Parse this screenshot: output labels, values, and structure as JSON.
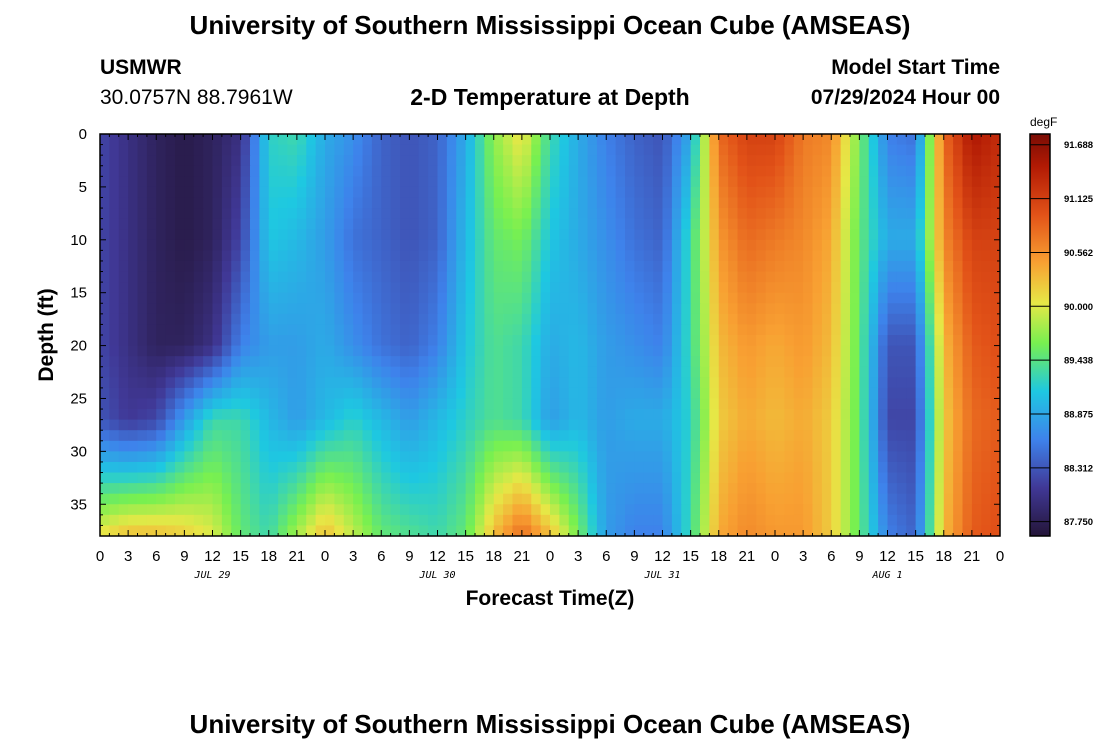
{
  "header": {
    "title": "University of Southern Mississippi Ocean Cube (AMSEAS)",
    "station": "USMWR",
    "coords": "30.0757N  88.7961W",
    "plot_title": "2-D Temperature at Depth",
    "model_start_label": "Model Start Time",
    "model_start_value": "07/29/2024 Hour 00"
  },
  "footer": {
    "title": "University of Southern Mississippi Ocean Cube (AMSEAS)"
  },
  "chart_data": {
    "type": "heatmap",
    "title": "2-D Temperature at Depth",
    "xlabel": "Forecast Time(Z)",
    "ylabel": "Depth (ft)",
    "x_range_hours": [
      0,
      96
    ],
    "y_range_ft": [
      0,
      38
    ],
    "x_tick_labels": [
      "0",
      "3",
      "6",
      "9",
      "12",
      "15",
      "18",
      "21",
      "0",
      "3",
      "6",
      "9",
      "12",
      "15",
      "18",
      "21",
      "0",
      "3",
      "6",
      "9",
      "12",
      "15",
      "18",
      "21",
      "0",
      "3",
      "6",
      "9",
      "12",
      "15",
      "18",
      "21",
      "0"
    ],
    "day_labels": [
      "JUL 29",
      "JUL 30",
      "JUL 31",
      "AUG 1"
    ],
    "y_ticks": [
      0,
      5,
      10,
      15,
      20,
      25,
      30,
      35
    ],
    "y_tick_labels": [
      "0",
      "5",
      "10",
      "15",
      "20",
      "25",
      "30",
      "35"
    ],
    "colorbar": {
      "unit": "degF",
      "min": 87.6,
      "max": 91.8,
      "ticks": [
        91.688,
        91.125,
        90.562,
        90.0,
        89.438,
        88.875,
        88.312,
        87.75
      ],
      "tick_labels": [
        "91.688",
        "91.125",
        "90.562",
        "90.000",
        "89.438",
        "88.875",
        "88.312",
        "87.750"
      ]
    },
    "depth_levels_ft": [
      0,
      10,
      20,
      27,
      38
    ],
    "time_hours": [
      0,
      3,
      6,
      9,
      12,
      15,
      18,
      21,
      24,
      27,
      30,
      33,
      36,
      39,
      42,
      45,
      48,
      51,
      54,
      57,
      60,
      63,
      66,
      69,
      72,
      75,
      78,
      81,
      84,
      87,
      90,
      93,
      96
    ],
    "temperature_degF": [
      [
        88.2,
        88.0,
        87.8,
        87.7,
        87.8,
        88.0,
        89.2,
        89.3,
        88.9,
        88.7,
        88.4,
        88.3,
        88.4,
        88.9,
        89.7,
        90.1,
        89.3,
        88.9,
        88.6,
        88.4,
        88.3,
        88.9,
        90.8,
        91.1,
        91.1,
        90.7,
        90.6,
        89.6,
        88.6,
        88.5,
        90.8,
        91.5,
        91.3
      ],
      [
        88.2,
        88.0,
        87.8,
        87.7,
        87.8,
        88.2,
        89.1,
        89.0,
        88.8,
        88.5,
        88.4,
        88.3,
        88.4,
        89.0,
        89.5,
        89.6,
        89.1,
        88.9,
        88.7,
        88.5,
        88.4,
        89.3,
        90.5,
        90.8,
        90.7,
        90.6,
        90.4,
        89.5,
        88.9,
        88.9,
        90.6,
        91.1,
        91.1
      ],
      [
        88.2,
        88.0,
        87.8,
        87.8,
        88.0,
        88.6,
        88.8,
        88.8,
        88.9,
        88.7,
        88.5,
        88.4,
        88.6,
        89.1,
        89.4,
        89.3,
        88.9,
        89.0,
        88.8,
        88.7,
        88.6,
        89.3,
        90.3,
        90.5,
        90.4,
        90.5,
        90.3,
        89.5,
        88.3,
        88.3,
        90.3,
        90.9,
        91.0
      ],
      [
        88.3,
        88.1,
        88.2,
        88.8,
        89.3,
        89.3,
        89.0,
        88.8,
        89.0,
        89.2,
        89.0,
        88.8,
        89.0,
        89.2,
        89.4,
        89.3,
        88.8,
        89.0,
        88.8,
        88.9,
        88.9,
        89.2,
        90.2,
        90.4,
        90.3,
        90.4,
        90.2,
        89.5,
        88.2,
        88.2,
        90.2,
        90.8,
        90.9
      ],
      [
        90.1,
        90.3,
        90.3,
        90.2,
        90.0,
        89.5,
        89.3,
        89.8,
        90.3,
        89.9,
        89.5,
        89.4,
        89.3,
        89.5,
        90.3,
        90.8,
        90.3,
        89.6,
        88.8,
        88.6,
        88.6,
        89.3,
        90.4,
        90.6,
        90.5,
        90.5,
        90.2,
        89.5,
        88.6,
        88.4,
        90.3,
        90.9,
        91.0
      ]
    ]
  }
}
